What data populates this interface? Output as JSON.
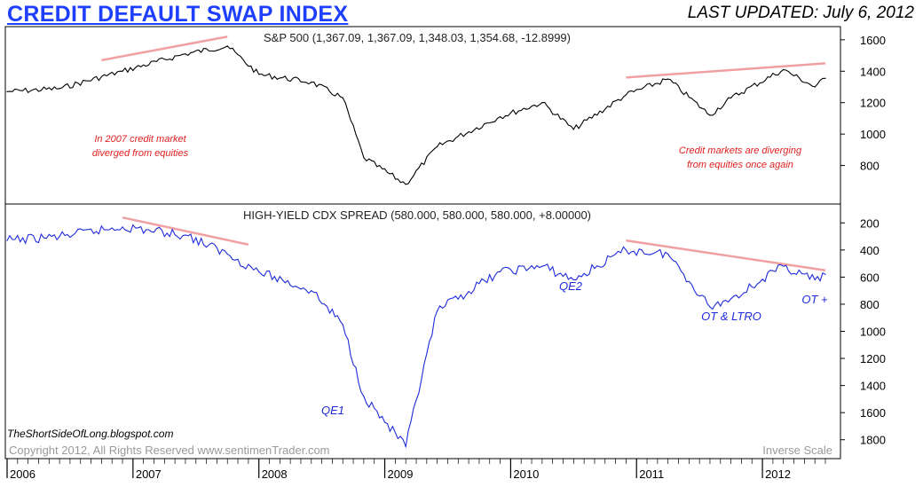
{
  "header": {
    "title": "CREDIT DEFAULT SWAP INDEX",
    "last_updated": "LAST UPDATED:  July 6, 2012"
  },
  "footer": {
    "blog": "TheShortSideOfLong.blogspot.com",
    "copyright": "Copyright 2012, All Rights Reserved  www.sentimenTrader.com",
    "inverse_scale": "Inverse Scale"
  },
  "colors": {
    "title": "#1f3fff",
    "spx_line": "#000000",
    "cdx_line": "#1f2bdb",
    "trend_line": "#f0a0a0",
    "annotation_red": "#e02020",
    "annotation_blue": "#1f2bdb"
  },
  "chart_data": [
    {
      "type": "line",
      "title": "S&P 500 (1,367.09, 1,367.09, 1,348.03, 1,354.68, -12.8999)",
      "x": [
        "2006-01",
        "2006-06",
        "2006-12",
        "2007-06",
        "2007-10",
        "2008-01",
        "2008-06",
        "2008-09",
        "2008-11",
        "2009-03",
        "2009-06",
        "2009-12",
        "2010-04",
        "2010-07",
        "2010-12",
        "2011-04",
        "2011-08",
        "2011-10",
        "2012-03",
        "2012-06",
        "2012-07"
      ],
      "series": [
        {
          "values": [
            1270,
            1290,
            1400,
            1510,
            1560,
            1380,
            1330,
            1230,
            850,
            680,
            920,
            1110,
            1200,
            1030,
            1250,
            1350,
            1120,
            1230,
            1410,
            1300,
            1355
          ]
        }
      ],
      "ylim": [
        600,
        1650
      ],
      "yticks": [
        800,
        1000,
        1200,
        1400,
        1600
      ],
      "annotations": [
        {
          "text": [
            "In 2007 credit market",
            "diverged from equities"
          ]
        },
        {
          "text": [
            "Credit markets are diverging",
            "from equities once again"
          ]
        }
      ],
      "trendlines": [
        {
          "from": [
            "2006-10",
            1470
          ],
          "to": [
            "2007-10",
            1620
          ]
        },
        {
          "from": [
            "2010-12",
            1360
          ],
          "to": [
            "2012-07",
            1450
          ]
        }
      ]
    },
    {
      "type": "line",
      "title": "HIGH-YIELD CDX SPREAD (580.000, 580.000, 580.000, +8.00000)",
      "inverse_scale": true,
      "x": [
        "2006-01",
        "2006-06",
        "2006-12",
        "2007-06",
        "2007-10",
        "2008-01",
        "2008-06",
        "2008-09",
        "2008-11",
        "2009-03",
        "2009-06",
        "2009-12",
        "2010-04",
        "2010-07",
        "2010-12",
        "2011-04",
        "2011-08",
        "2011-10",
        "2012-03",
        "2012-06",
        "2012-07"
      ],
      "series": [
        {
          "values": [
            330,
            300,
            230,
            290,
            430,
            560,
            700,
            950,
            1480,
            1850,
            850,
            560,
            520,
            620,
            400,
            430,
            820,
            760,
            520,
            620,
            580
          ]
        }
      ],
      "ylim": [
        1900,
        100
      ],
      "yticks": [
        200,
        400,
        600,
        800,
        1000,
        1200,
        1400,
        1600,
        1800
      ],
      "annotations": [
        {
          "text": "QE1"
        },
        {
          "text": "QE2"
        },
        {
          "text": "OT & LTRO"
        },
        {
          "text": "OT +"
        }
      ],
      "trendlines": [
        {
          "from": [
            "2006-12",
            160
          ],
          "to": [
            "2007-12",
            360
          ]
        },
        {
          "from": [
            "2010-12",
            330
          ],
          "to": [
            "2012-07",
            550
          ]
        }
      ]
    }
  ],
  "x_axis": {
    "labels": [
      "2006",
      "2007",
      "2008",
      "2009",
      "2010",
      "2011",
      "2012"
    ]
  }
}
